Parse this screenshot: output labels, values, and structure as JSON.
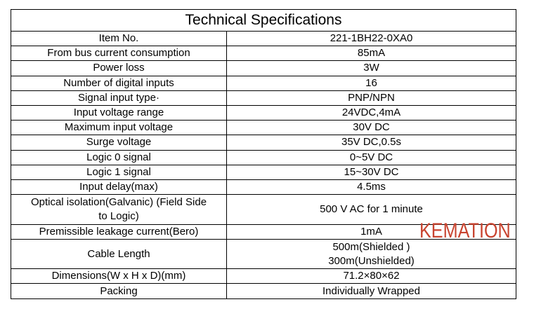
{
  "table": {
    "title": "Technical Specifications",
    "rows": [
      [
        [
          "Item No."
        ],
        [
          "221-1BH22-0XA0"
        ]
      ],
      [
        [
          "From bus current consumption"
        ],
        [
          "85mA"
        ]
      ],
      [
        [
          "Power loss"
        ],
        [
          "3W"
        ]
      ],
      [
        [
          "Number of digital inputs"
        ],
        [
          "16"
        ]
      ],
      [
        [
          "Signal input type·"
        ],
        [
          "PNP/NPN"
        ]
      ],
      [
        [
          "Input voltage range"
        ],
        [
          "24VDC,4mA"
        ]
      ],
      [
        [
          "Maximum input voltage"
        ],
        [
          "30V DC"
        ]
      ],
      [
        [
          "Surge voltage"
        ],
        [
          "35V DC,0.5s"
        ]
      ],
      [
        [
          "Logic 0 signal"
        ],
        [
          "0~5V DC"
        ]
      ],
      [
        [
          "Logic 1 signal"
        ],
        [
          "15~30V DC"
        ]
      ],
      [
        [
          "Input delay(max)"
        ],
        [
          "4.5ms"
        ]
      ],
      [
        [
          "Optical isolation(Galvanic)  (Field Side",
          "to Logic)"
        ],
        [
          "500 V AC for 1 minute"
        ]
      ],
      [
        [
          "Premissible leakage current(Bero)"
        ],
        [
          "1mA"
        ]
      ],
      [
        [
          "Cable Length"
        ],
        [
          "500m(Shielded )",
          "300m(Unshielded)"
        ]
      ],
      [
        [
          "Dimensions(W x H x D)(mm)"
        ],
        [
          "71.2×80×62"
        ]
      ],
      [
        [
          "Packing"
        ],
        [
          "Individually Wrapped"
        ]
      ]
    ]
  },
  "watermark": "KEMATION"
}
